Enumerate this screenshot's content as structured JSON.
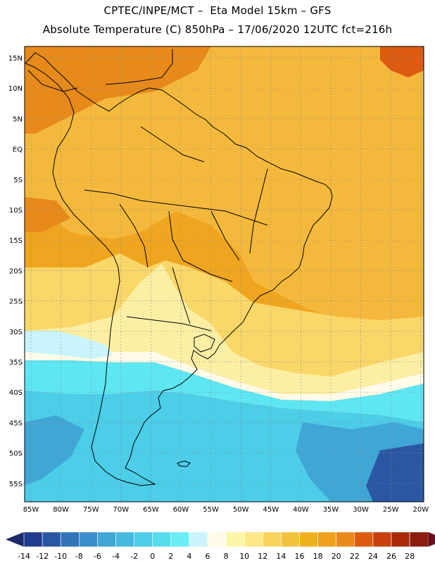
{
  "header": {
    "title_line1": "CPTEC/INPE/MCT –  Eta Model 15km – GFS",
    "title_line2": "Absolute Temperature (C) 850hPa – 17/06/2020 12UTC fct=216h"
  },
  "axes": {
    "lat_labels": [
      "15N",
      "10N",
      "5N",
      "EQ",
      "5S",
      "10S",
      "15S",
      "20S",
      "25S",
      "30S",
      "35S",
      "40S",
      "45S",
      "50S",
      "55S"
    ],
    "lon_labels": [
      "85W",
      "80W",
      "75W",
      "70W",
      "65W",
      "60W",
      "55W",
      "50W",
      "45W",
      "40W",
      "35W",
      "30W",
      "25W",
      "20W"
    ]
  },
  "colorbar": {
    "ticks": [
      "-14",
      "-12",
      "-10",
      "-8",
      "-6",
      "-4",
      "-2",
      "0",
      "2",
      "4",
      "6",
      "8",
      "10",
      "12",
      "14",
      "16",
      "18",
      "20",
      "22",
      "24",
      "26",
      "28"
    ],
    "colors": [
      "#1f3c8c",
      "#2a57a3",
      "#3175b8",
      "#3a8fcb",
      "#3fa6d6",
      "#44bade",
      "#4ccde8",
      "#56dced",
      "#69edf5",
      "#c9f4fb",
      "#fffbe8",
      "#fdf6a7",
      "#fce886",
      "#f8d35b",
      "#f2c23e",
      "#efb020",
      "#eda11d",
      "#e9891a",
      "#dd5b10",
      "#c8400c",
      "#a82a0a",
      "#8c1c10"
    ],
    "low_arrow_color": "#1d2a6b",
    "high_arrow_color": "#6e0d1e"
  },
  "map_colors": {
    "warm_deep": "#e78a1a",
    "warm": "#efa51f",
    "warm_light": "#f4b93c",
    "yellow": "#f9d768",
    "pale_yellow": "#fcefa4",
    "cream": "#fffbe8",
    "pale_cyan": "#c9f4fb",
    "cyan": "#5ee6f3",
    "sky": "#4ccde8",
    "blue": "#3fa6d6",
    "deep_blue": "#2a57a3",
    "hot": "#dd5b10"
  }
}
